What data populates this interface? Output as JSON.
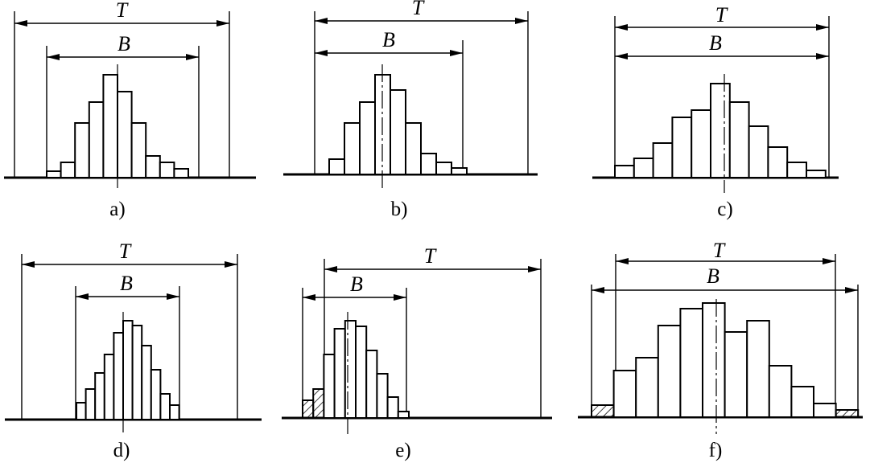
{
  "diagrams": [
    {
      "caption": "a)",
      "tolerance_label": "T",
      "spread_label": "B",
      "bar_heights": [
        8,
        19,
        68,
        94,
        128,
        107,
        68,
        27,
        19,
        11
      ],
      "hatched": []
    },
    {
      "caption": "b)",
      "tolerance_label": "T",
      "spread_label": "B",
      "bar_heights": [
        19,
        64,
        90,
        124,
        105,
        64,
        26,
        15,
        8
      ],
      "hatched": []
    },
    {
      "caption": "c)",
      "tolerance_label": "T",
      "spread_label": "B",
      "bar_heights": [
        15,
        24,
        43,
        75,
        84,
        117,
        94,
        64,
        38,
        19,
        9
      ],
      "hatched": []
    },
    {
      "caption": "d)",
      "tolerance_label": "T",
      "spread_label": "B",
      "bar_heights": [
        21,
        38,
        58,
        81,
        108,
        123,
        117,
        92,
        62,
        32,
        18
      ],
      "hatched": []
    },
    {
      "caption": "e)",
      "tolerance_label": "T",
      "spread_label": "B",
      "bar_heights": [
        22,
        36,
        79,
        111,
        121,
        114,
        84,
        55,
        26,
        8
      ],
      "hatched": [
        0,
        1
      ]
    },
    {
      "caption": "f)",
      "tolerance_label": "T",
      "spread_label": "B",
      "bar_heights": [
        15,
        58,
        74,
        114,
        135,
        142,
        106,
        120,
        64,
        38,
        17,
        9
      ],
      "hatched": [
        0,
        11
      ]
    }
  ]
}
